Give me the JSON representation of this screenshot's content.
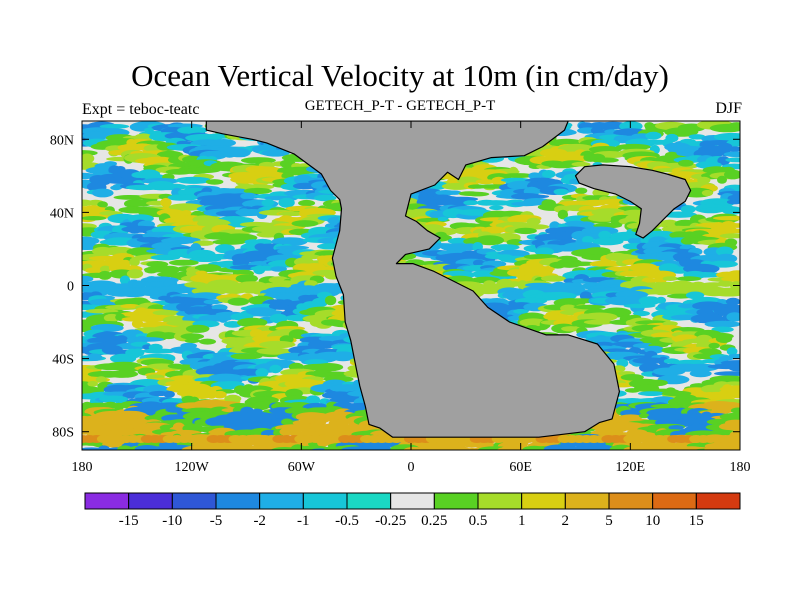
{
  "header": {
    "title": "Ocean Vertical Velocity at 10m (in cm/day)",
    "expt": "Expt = teboc-teatc",
    "subtitle": "GETECH_P-T - GETECH_P-T",
    "season": "DJF"
  },
  "chart_data": {
    "type": "heatmap",
    "title": "Ocean Vertical Velocity at 10m (in cm/day)",
    "units": "cm/day",
    "projection": "cylindrical equidistant",
    "xlim": [
      -180,
      180
    ],
    "ylim": [
      -90,
      90
    ],
    "x_ticks": [
      {
        "value": -180,
        "label": "180"
      },
      {
        "value": -120,
        "label": "120W"
      },
      {
        "value": -60,
        "label": "60W"
      },
      {
        "value": 0,
        "label": "0"
      },
      {
        "value": 60,
        "label": "60E"
      },
      {
        "value": 120,
        "label": "120E"
      },
      {
        "value": 180,
        "label": "180"
      }
    ],
    "y_ticks": [
      {
        "value": 80,
        "label": "80N"
      },
      {
        "value": 40,
        "label": "40N"
      },
      {
        "value": 0,
        "label": "0"
      },
      {
        "value": -40,
        "label": "40S"
      },
      {
        "value": -80,
        "label": "80S"
      }
    ],
    "colorbar": {
      "levels": [
        "-15",
        "-10",
        "-5",
        "-2",
        "-1",
        "-0.5",
        "-0.25",
        "0.25",
        "0.5",
        "1",
        "2",
        "5",
        "10",
        "15"
      ],
      "colors": [
        "#8a2be2",
        "#4b2ed8",
        "#2f57d6",
        "#1e88e0",
        "#1faee6",
        "#17c6d8",
        "#1ad8c4",
        "#e6e6e6",
        "#59d123",
        "#a6dc2a",
        "#d8cf12",
        "#dcb21c",
        "#dc8e1a",
        "#dc6a14",
        "#d43a10"
      ]
    },
    "land_color": "#a0a0a0",
    "land_polygons": [
      {
        "name": "pangea-main",
        "coords": [
          [
            -112,
            90
          ],
          [
            -112,
            85
          ],
          [
            -103,
            83
          ],
          [
            -87,
            80
          ],
          [
            -79,
            78
          ],
          [
            -64,
            72
          ],
          [
            -49,
            61
          ],
          [
            -44,
            52
          ],
          [
            -39,
            47
          ],
          [
            -38,
            42
          ],
          [
            -39,
            30
          ],
          [
            -43,
            15
          ],
          [
            -41,
            5
          ],
          [
            -37,
            -5
          ],
          [
            -36,
            -20
          ],
          [
            -33,
            -30
          ],
          [
            -31,
            -40
          ],
          [
            -28,
            -55
          ],
          [
            -25,
            -66
          ],
          [
            -23,
            -76
          ],
          [
            -17,
            -78
          ],
          [
            -10,
            -83
          ],
          [
            10,
            -83
          ],
          [
            35,
            -83
          ],
          [
            70,
            -83
          ],
          [
            95,
            -80
          ],
          [
            103,
            -75
          ],
          [
            110,
            -73
          ],
          [
            114,
            -58
          ],
          [
            111,
            -43
          ],
          [
            102,
            -32
          ],
          [
            86,
            -27
          ],
          [
            74,
            -27
          ],
          [
            54,
            -20
          ],
          [
            42,
            -12
          ],
          [
            34,
            -3
          ],
          [
            22,
            3
          ],
          [
            12,
            8
          ],
          [
            1,
            12
          ],
          [
            -8,
            12
          ],
          [
            -3,
            17
          ],
          [
            10,
            20
          ],
          [
            16,
            26
          ],
          [
            9,
            30
          ],
          [
            3,
            35
          ],
          [
            -3,
            38
          ],
          [
            -2,
            42
          ],
          [
            0,
            50
          ],
          [
            13,
            55
          ],
          [
            20,
            62
          ],
          [
            26,
            58
          ],
          [
            30,
            66
          ],
          [
            44,
            70
          ],
          [
            62,
            71
          ],
          [
            72,
            76
          ],
          [
            80,
            82
          ],
          [
            84,
            85
          ],
          [
            86,
            90
          ]
        ]
      },
      {
        "name": "east-landmass",
        "coords": [
          [
            90,
            60
          ],
          [
            95,
            65
          ],
          [
            105,
            66
          ],
          [
            120,
            65
          ],
          [
            132,
            63
          ],
          [
            140,
            61
          ],
          [
            150,
            58
          ],
          [
            153,
            52
          ],
          [
            150,
            46
          ],
          [
            144,
            42
          ],
          [
            138,
            36
          ],
          [
            132,
            30
          ],
          [
            127,
            26
          ],
          [
            123,
            28
          ],
          [
            125,
            34
          ],
          [
            126,
            42
          ],
          [
            120,
            46
          ],
          [
            112,
            50
          ],
          [
            100,
            53
          ],
          [
            92,
            56
          ]
        ]
      }
    ]
  }
}
